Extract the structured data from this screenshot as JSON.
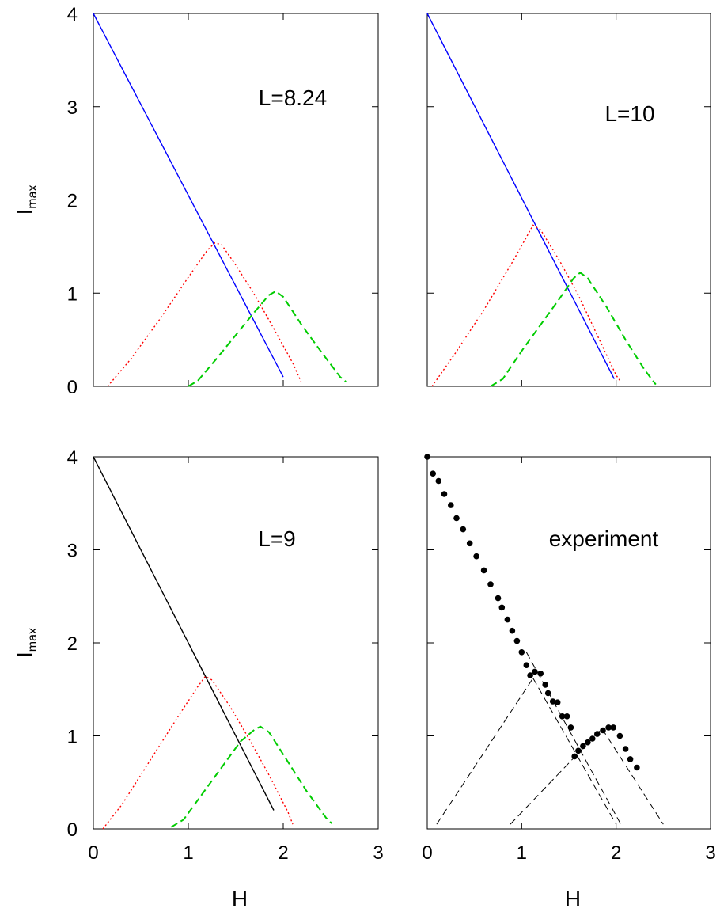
{
  "chart_data": [
    {
      "type": "line",
      "label": "L=8.24",
      "ylabel": "I",
      "ylabel_sub": "max",
      "xlabel": "",
      "xlim": [
        0,
        3
      ],
      "ylim": [
        0,
        4
      ],
      "xticks": [
        0,
        1,
        2,
        3
      ],
      "yticks": [
        0,
        1,
        2,
        3,
        4
      ],
      "show_x_tick_labels": false,
      "show_y_tick_labels": true,
      "series": [
        {
          "color": "#0000ff",
          "style": "solid",
          "x": [
            0,
            2.0
          ],
          "y": [
            4,
            0.1
          ]
        },
        {
          "color": "#ff0000",
          "style": "dotted",
          "x": [
            0.15,
            0.4,
            0.7,
            1.0,
            1.2,
            1.28,
            1.35,
            1.5,
            1.7,
            1.9,
            2.1,
            2.2
          ],
          "y": [
            0,
            0.3,
            0.72,
            1.17,
            1.46,
            1.54,
            1.52,
            1.3,
            0.98,
            0.62,
            0.25,
            0.02
          ]
        },
        {
          "color": "#00cc00",
          "style": "dashed",
          "x": [
            1.0,
            1.1,
            1.3,
            1.5,
            1.7,
            1.85,
            1.92,
            2.0,
            2.2,
            2.4,
            2.6,
            2.66
          ],
          "y": [
            0,
            0.06,
            0.3,
            0.55,
            0.8,
            0.98,
            1.02,
            0.96,
            0.65,
            0.37,
            0.1,
            0.05
          ]
        }
      ]
    },
    {
      "type": "line",
      "label": "L=10",
      "ylabel": "",
      "xlabel": "",
      "xlim": [
        0,
        3
      ],
      "ylim": [
        0,
        4
      ],
      "xticks": [
        0,
        1,
        2,
        3
      ],
      "yticks": [
        0,
        1,
        2,
        3,
        4
      ],
      "show_x_tick_labels": false,
      "show_y_tick_labels": false,
      "series": [
        {
          "color": "#0000ff",
          "style": "solid",
          "x": [
            0,
            1.98
          ],
          "y": [
            4,
            0.08
          ]
        },
        {
          "color": "#ff0000",
          "style": "dotted",
          "x": [
            0.05,
            0.3,
            0.6,
            0.9,
            1.05,
            1.12,
            1.2,
            1.4,
            1.6,
            1.8,
            2.0,
            2.05
          ],
          "y": [
            0,
            0.36,
            0.82,
            1.33,
            1.6,
            1.73,
            1.68,
            1.35,
            0.98,
            0.55,
            0.12,
            0.05
          ]
        },
        {
          "color": "#00cc00",
          "style": "dashed",
          "x": [
            0.67,
            0.8,
            1.0,
            1.2,
            1.4,
            1.55,
            1.62,
            1.7,
            1.9,
            2.1,
            2.3,
            2.42
          ],
          "y": [
            0,
            0.08,
            0.38,
            0.66,
            0.94,
            1.16,
            1.22,
            1.16,
            0.85,
            0.5,
            0.18,
            0.02
          ]
        }
      ]
    },
    {
      "type": "line",
      "label": "L=9",
      "ylabel": "I",
      "ylabel_sub": "max",
      "xlabel": "H",
      "xlim": [
        0,
        3
      ],
      "ylim": [
        0,
        4
      ],
      "xticks": [
        0,
        1,
        2,
        3
      ],
      "yticks": [
        0,
        1,
        2,
        3,
        4
      ],
      "show_x_tick_labels": true,
      "show_y_tick_labels": true,
      "series": [
        {
          "color": "#000000",
          "style": "solid",
          "x": [
            0,
            1.9
          ],
          "y": [
            4,
            0.2
          ]
        },
        {
          "color": "#ff0000",
          "style": "dotted",
          "x": [
            0.1,
            0.3,
            0.6,
            0.9,
            1.1,
            1.18,
            1.25,
            1.45,
            1.65,
            1.85,
            2.05,
            2.1
          ],
          "y": [
            0,
            0.26,
            0.74,
            1.22,
            1.53,
            1.64,
            1.6,
            1.3,
            0.95,
            0.58,
            0.18,
            0.05
          ]
        },
        {
          "color": "#00cc00",
          "style": "dashed",
          "x": [
            0.82,
            0.95,
            1.15,
            1.35,
            1.55,
            1.7,
            1.76,
            1.85,
            2.05,
            2.25,
            2.45,
            2.51
          ],
          "y": [
            0.02,
            0.1,
            0.38,
            0.66,
            0.94,
            1.07,
            1.1,
            1.04,
            0.72,
            0.4,
            0.12,
            0.06
          ]
        }
      ]
    },
    {
      "type": "scatter",
      "label": "experiment",
      "ylabel": "",
      "xlabel": "H",
      "xlim": [
        0,
        3
      ],
      "ylim": [
        0,
        4
      ],
      "xticks": [
        0,
        1,
        2,
        3
      ],
      "yticks": [
        0,
        1,
        2,
        3,
        4
      ],
      "show_x_tick_labels": true,
      "show_y_tick_labels": false,
      "points": {
        "x": [
          0,
          0.06,
          0.12,
          0.18,
          0.25,
          0.31,
          0.38,
          0.45,
          0.52,
          0.6,
          0.67,
          0.75,
          0.79,
          0.85,
          0.9,
          0.95,
          1.0,
          1.05,
          1.09,
          1.14,
          1.2,
          1.25,
          1.28,
          1.33,
          1.38,
          1.43,
          1.48,
          1.52,
          1.56,
          1.6,
          1.65,
          1.7,
          1.75,
          1.8,
          1.86,
          1.92,
          1.97,
          2.04,
          2.1,
          2.15,
          2.22
        ],
        "y": [
          4.0,
          3.82,
          3.74,
          3.6,
          3.48,
          3.34,
          3.22,
          3.07,
          2.93,
          2.78,
          2.63,
          2.48,
          2.38,
          2.25,
          2.13,
          2.02,
          1.9,
          1.76,
          1.65,
          1.69,
          1.67,
          1.55,
          1.46,
          1.37,
          1.36,
          1.21,
          1.21,
          1.09,
          0.78,
          0.84,
          0.89,
          0.93,
          0.97,
          1.02,
          1.06,
          1.09,
          1.09,
          1.0,
          0.86,
          0.75,
          0.66
        ]
      },
      "guides": [
        {
          "color": "#000000",
          "style": "dashed",
          "x": [
            0.1,
            1.12
          ],
          "y": [
            0.05,
            1.62
          ]
        },
        {
          "color": "#000000",
          "style": "dashed",
          "x": [
            1.12,
            2.0
          ],
          "y": [
            1.62,
            0.05
          ]
        },
        {
          "color": "#000000",
          "style": "dashed",
          "x": [
            0.88,
            1.85
          ],
          "y": [
            0.05,
            1.08
          ]
        },
        {
          "color": "#000000",
          "style": "dashed",
          "x": [
            1.85,
            2.5
          ],
          "y": [
            1.08,
            0.05
          ]
        },
        {
          "color": "#000000",
          "style": "dashed",
          "x": [
            1.05,
            2.05
          ],
          "y": [
            1.9,
            0.05
          ]
        }
      ]
    }
  ]
}
